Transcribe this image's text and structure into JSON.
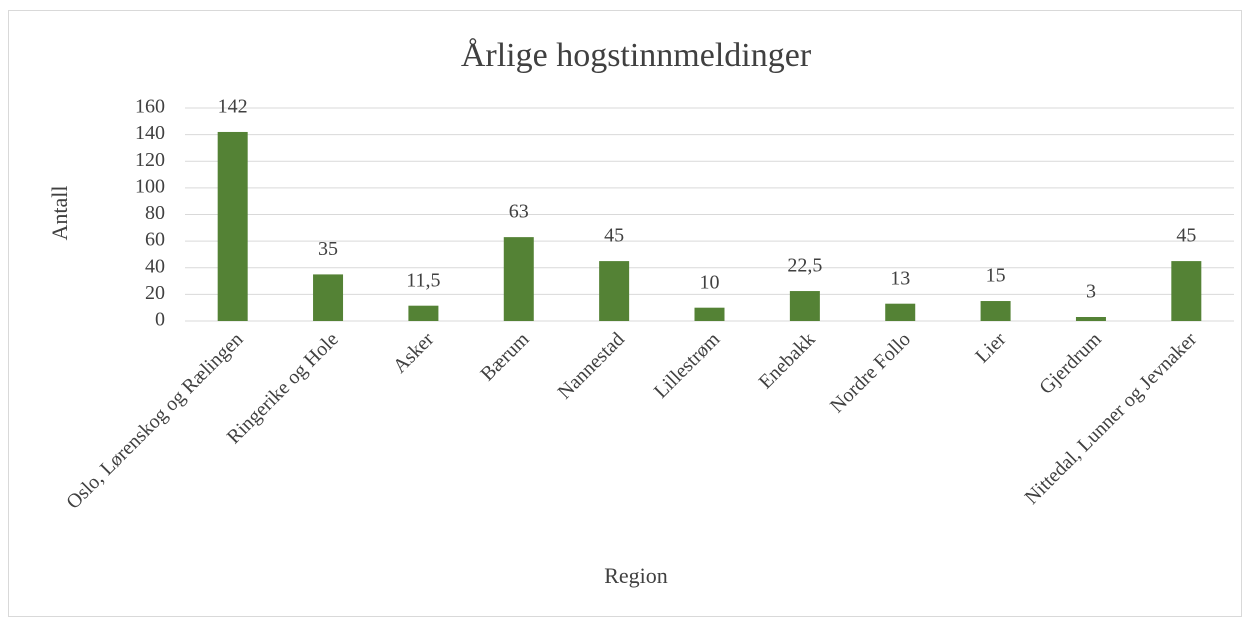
{
  "chart_data": {
    "type": "bar",
    "title": "Årlige hogstinnmeldinger",
    "x_label": "Region",
    "y_label": "Antall",
    "categories": [
      "Oslo, Lørenskog og Rælingen",
      "Ringerike og Hole",
      "Asker",
      "Bærum",
      "Nannestad",
      "Lillestrøm",
      "Enebakk",
      "Nordre Follo",
      "Lier",
      "Gjerdrum",
      "Nittedal, Lunner og Jevnaker"
    ],
    "values": [
      142,
      35,
      11.5,
      63,
      45,
      10,
      22.5,
      13,
      15,
      3,
      45
    ],
    "value_labels": [
      "142",
      "35",
      "11,5",
      "63",
      "45",
      "10",
      "22,5",
      "13",
      "15",
      "3",
      "45"
    ],
    "color": "#548235",
    "ylim": [
      0,
      160
    ],
    "yticks": [
      0,
      20,
      40,
      60,
      80,
      100,
      120,
      140,
      160
    ],
    "grid": true
  }
}
